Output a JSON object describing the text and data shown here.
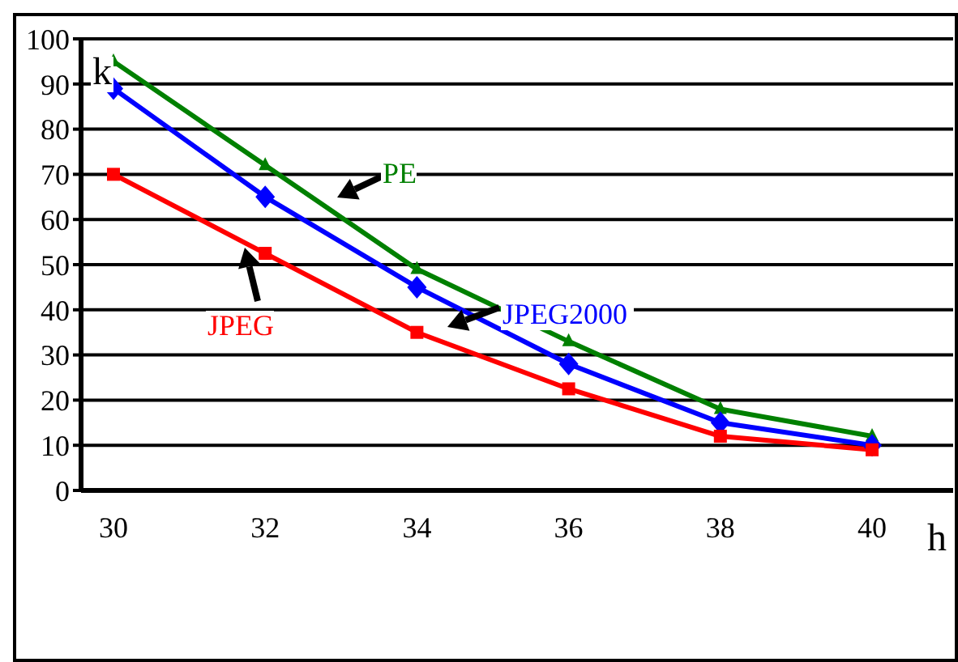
{
  "chart_data": {
    "type": "line",
    "xlabel": "h",
    "ylabel": "k",
    "categories": [
      "30",
      "32",
      "34",
      "36",
      "38",
      "40"
    ],
    "series": [
      {
        "name": "PE",
        "color": "#008000",
        "marker": "triangle",
        "values": [
          95,
          72,
          49,
          33,
          18,
          12
        ]
      },
      {
        "name": "JPEG2000",
        "color": "#0000ff",
        "marker": "diamond",
        "values": [
          89,
          65,
          45,
          28,
          15,
          10
        ]
      },
      {
        "name": "JPEG",
        "color": "#ff0000",
        "marker": "square",
        "values": [
          70,
          52.5,
          35,
          22.5,
          12,
          9
        ]
      }
    ],
    "ylim": [
      0,
      100
    ],
    "yticks": [
      0,
      10,
      20,
      30,
      40,
      50,
      60,
      70,
      80,
      90,
      100
    ],
    "grid": "y",
    "legend": false
  }
}
